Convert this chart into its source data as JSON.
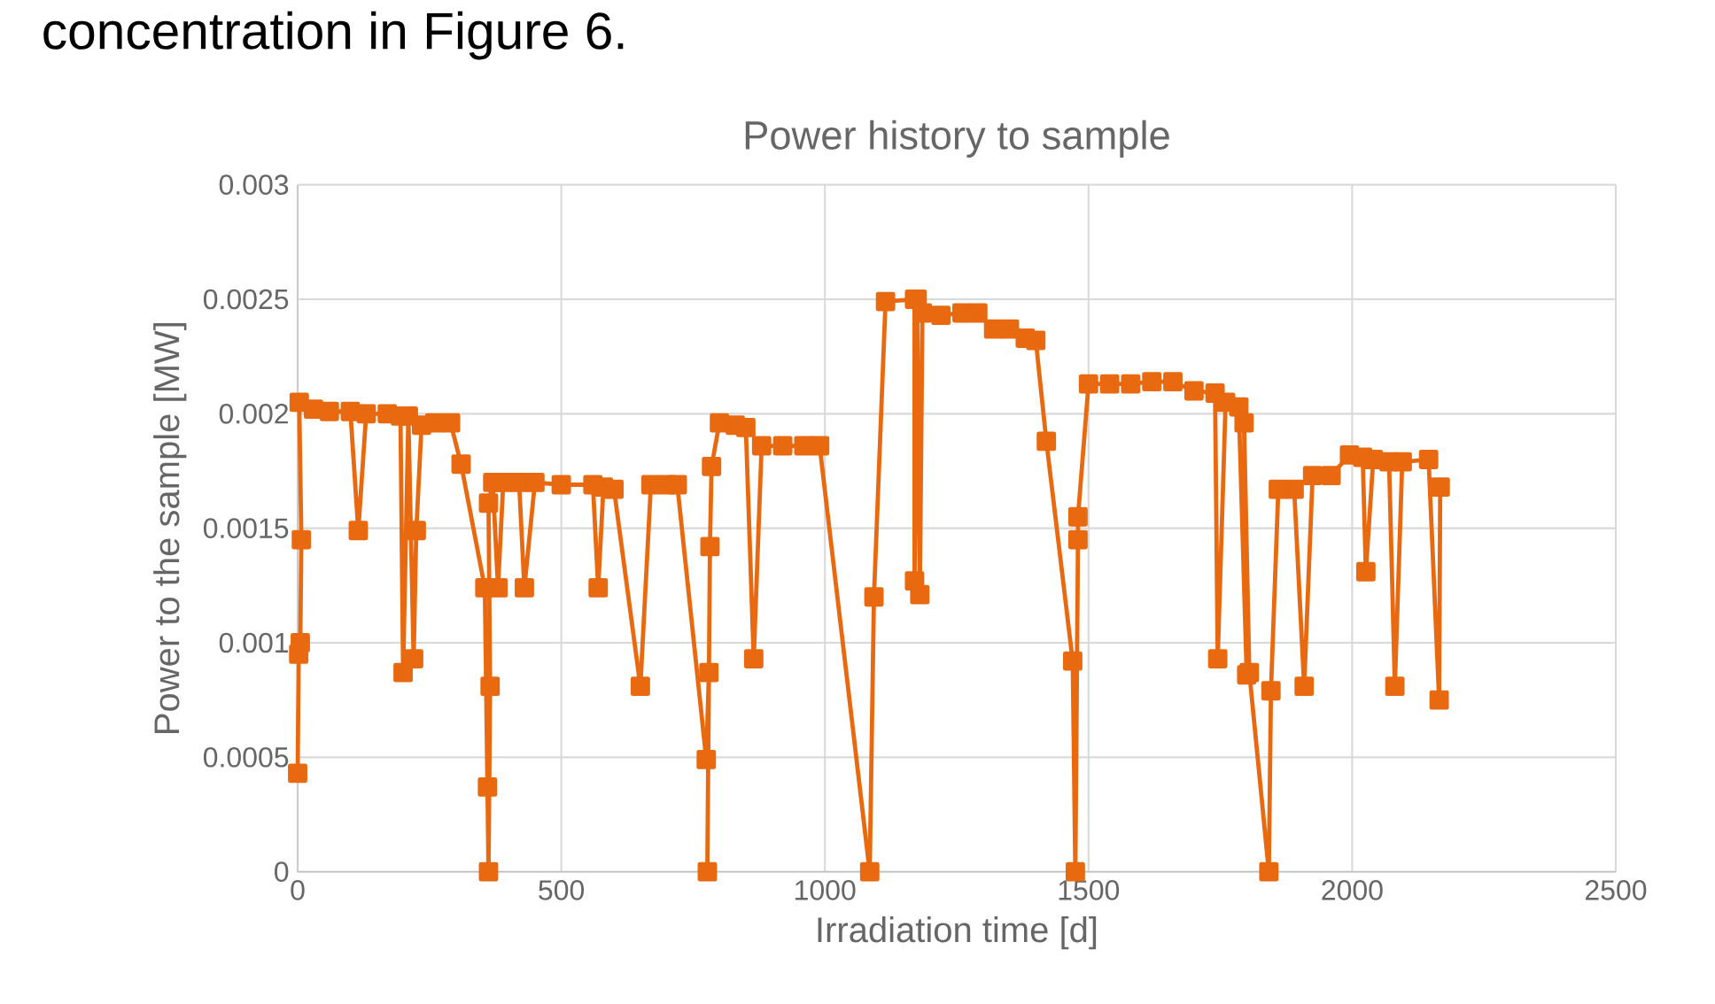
{
  "chart_data": {
    "type": "line",
    "title": "Power history to sample",
    "xlabel": "Irradiation time [d]",
    "ylabel": "Power to the sample [MW]",
    "annotations": [
      "concentration in Figure 6."
    ],
    "xlim": [
      0,
      2500
    ],
    "xticks": [
      0,
      500,
      1000,
      1500,
      2000,
      2500
    ],
    "ylim": [
      0,
      0.003
    ],
    "yticks": [
      0,
      0.0005,
      0.001,
      0.0015,
      0.002,
      0.0025,
      0.003
    ],
    "grid": true,
    "marker": "square",
    "line_style": "solid",
    "series": [
      {
        "color": "#e8690f",
        "x": [
          0,
          2,
          5,
          7,
          3,
          30,
          60,
          100,
          115,
          130,
          170,
          195,
          200,
          210,
          220,
          225,
          235,
          260,
          290,
          310,
          355,
          360,
          362,
          365,
          362,
          370,
          380,
          390,
          420,
          430,
          450,
          500,
          560,
          570,
          580,
          600,
          650,
          670,
          700,
          720,
          775,
          780,
          777,
          782,
          785,
          800,
          830,
          850,
          865,
          880,
          920,
          960,
          990,
          1085,
          1093,
          1115,
          1170,
          1170,
          1175,
          1180,
          1185,
          1220,
          1260,
          1290,
          1320,
          1350,
          1380,
          1400,
          1420,
          1470,
          1475,
          1480,
          1480,
          1500,
          1540,
          1580,
          1620,
          1660,
          1700,
          1740,
          1745,
          1760,
          1785,
          1800,
          1795,
          1805,
          1842,
          1846,
          1860,
          1890,
          1909,
          1925,
          1960,
          1995,
          2020,
          2026,
          2040,
          2070,
          2081,
          2095,
          2145,
          2165,
          2167
        ],
        "values": [
          0.00043,
          0.00095,
          0.001,
          0.00145,
          0.00205,
          0.00202,
          0.00201,
          0.00201,
          0.00149,
          0.002,
          0.002,
          0.00199,
          0.00087,
          0.00199,
          0.00093,
          0.00149,
          0.00195,
          0.00196,
          0.00196,
          0.00178,
          0.00124,
          0.00037,
          0,
          0.00081,
          0.00161,
          0.0017,
          0.00124,
          0.0017,
          0.0017,
          0.00124,
          0.0017,
          0.00169,
          0.00169,
          0.00124,
          0.00168,
          0.00167,
          0.00081,
          0.00169,
          0.00169,
          0.00169,
          0.00049,
          0.00087,
          0,
          0.00142,
          0.00177,
          0.00196,
          0.00195,
          0.00194,
          0.00093,
          0.00186,
          0.00186,
          0.00186,
          0.00186,
          0,
          0.0012,
          0.00249,
          0.0025,
          0.00127,
          0.0025,
          0.00121,
          0.00244,
          0.00243,
          0.00244,
          0.00244,
          0.00237,
          0.00237,
          0.00233,
          0.00232,
          0.00188,
          0.00092,
          0,
          0.00145,
          0.00155,
          0.00213,
          0.00213,
          0.00213,
          0.00214,
          0.00214,
          0.0021,
          0.00209,
          0.00093,
          0.00205,
          0.00203,
          0.00086,
          0.00196,
          0.00087,
          0,
          0.00079,
          0.00167,
          0.00167,
          0.00081,
          0.00173,
          0.00173,
          0.00182,
          0.00181,
          0.00131,
          0.0018,
          0.00179,
          0.00081,
          0.00179,
          0.0018,
          0.00075,
          0.00168
        ]
      }
    ]
  }
}
